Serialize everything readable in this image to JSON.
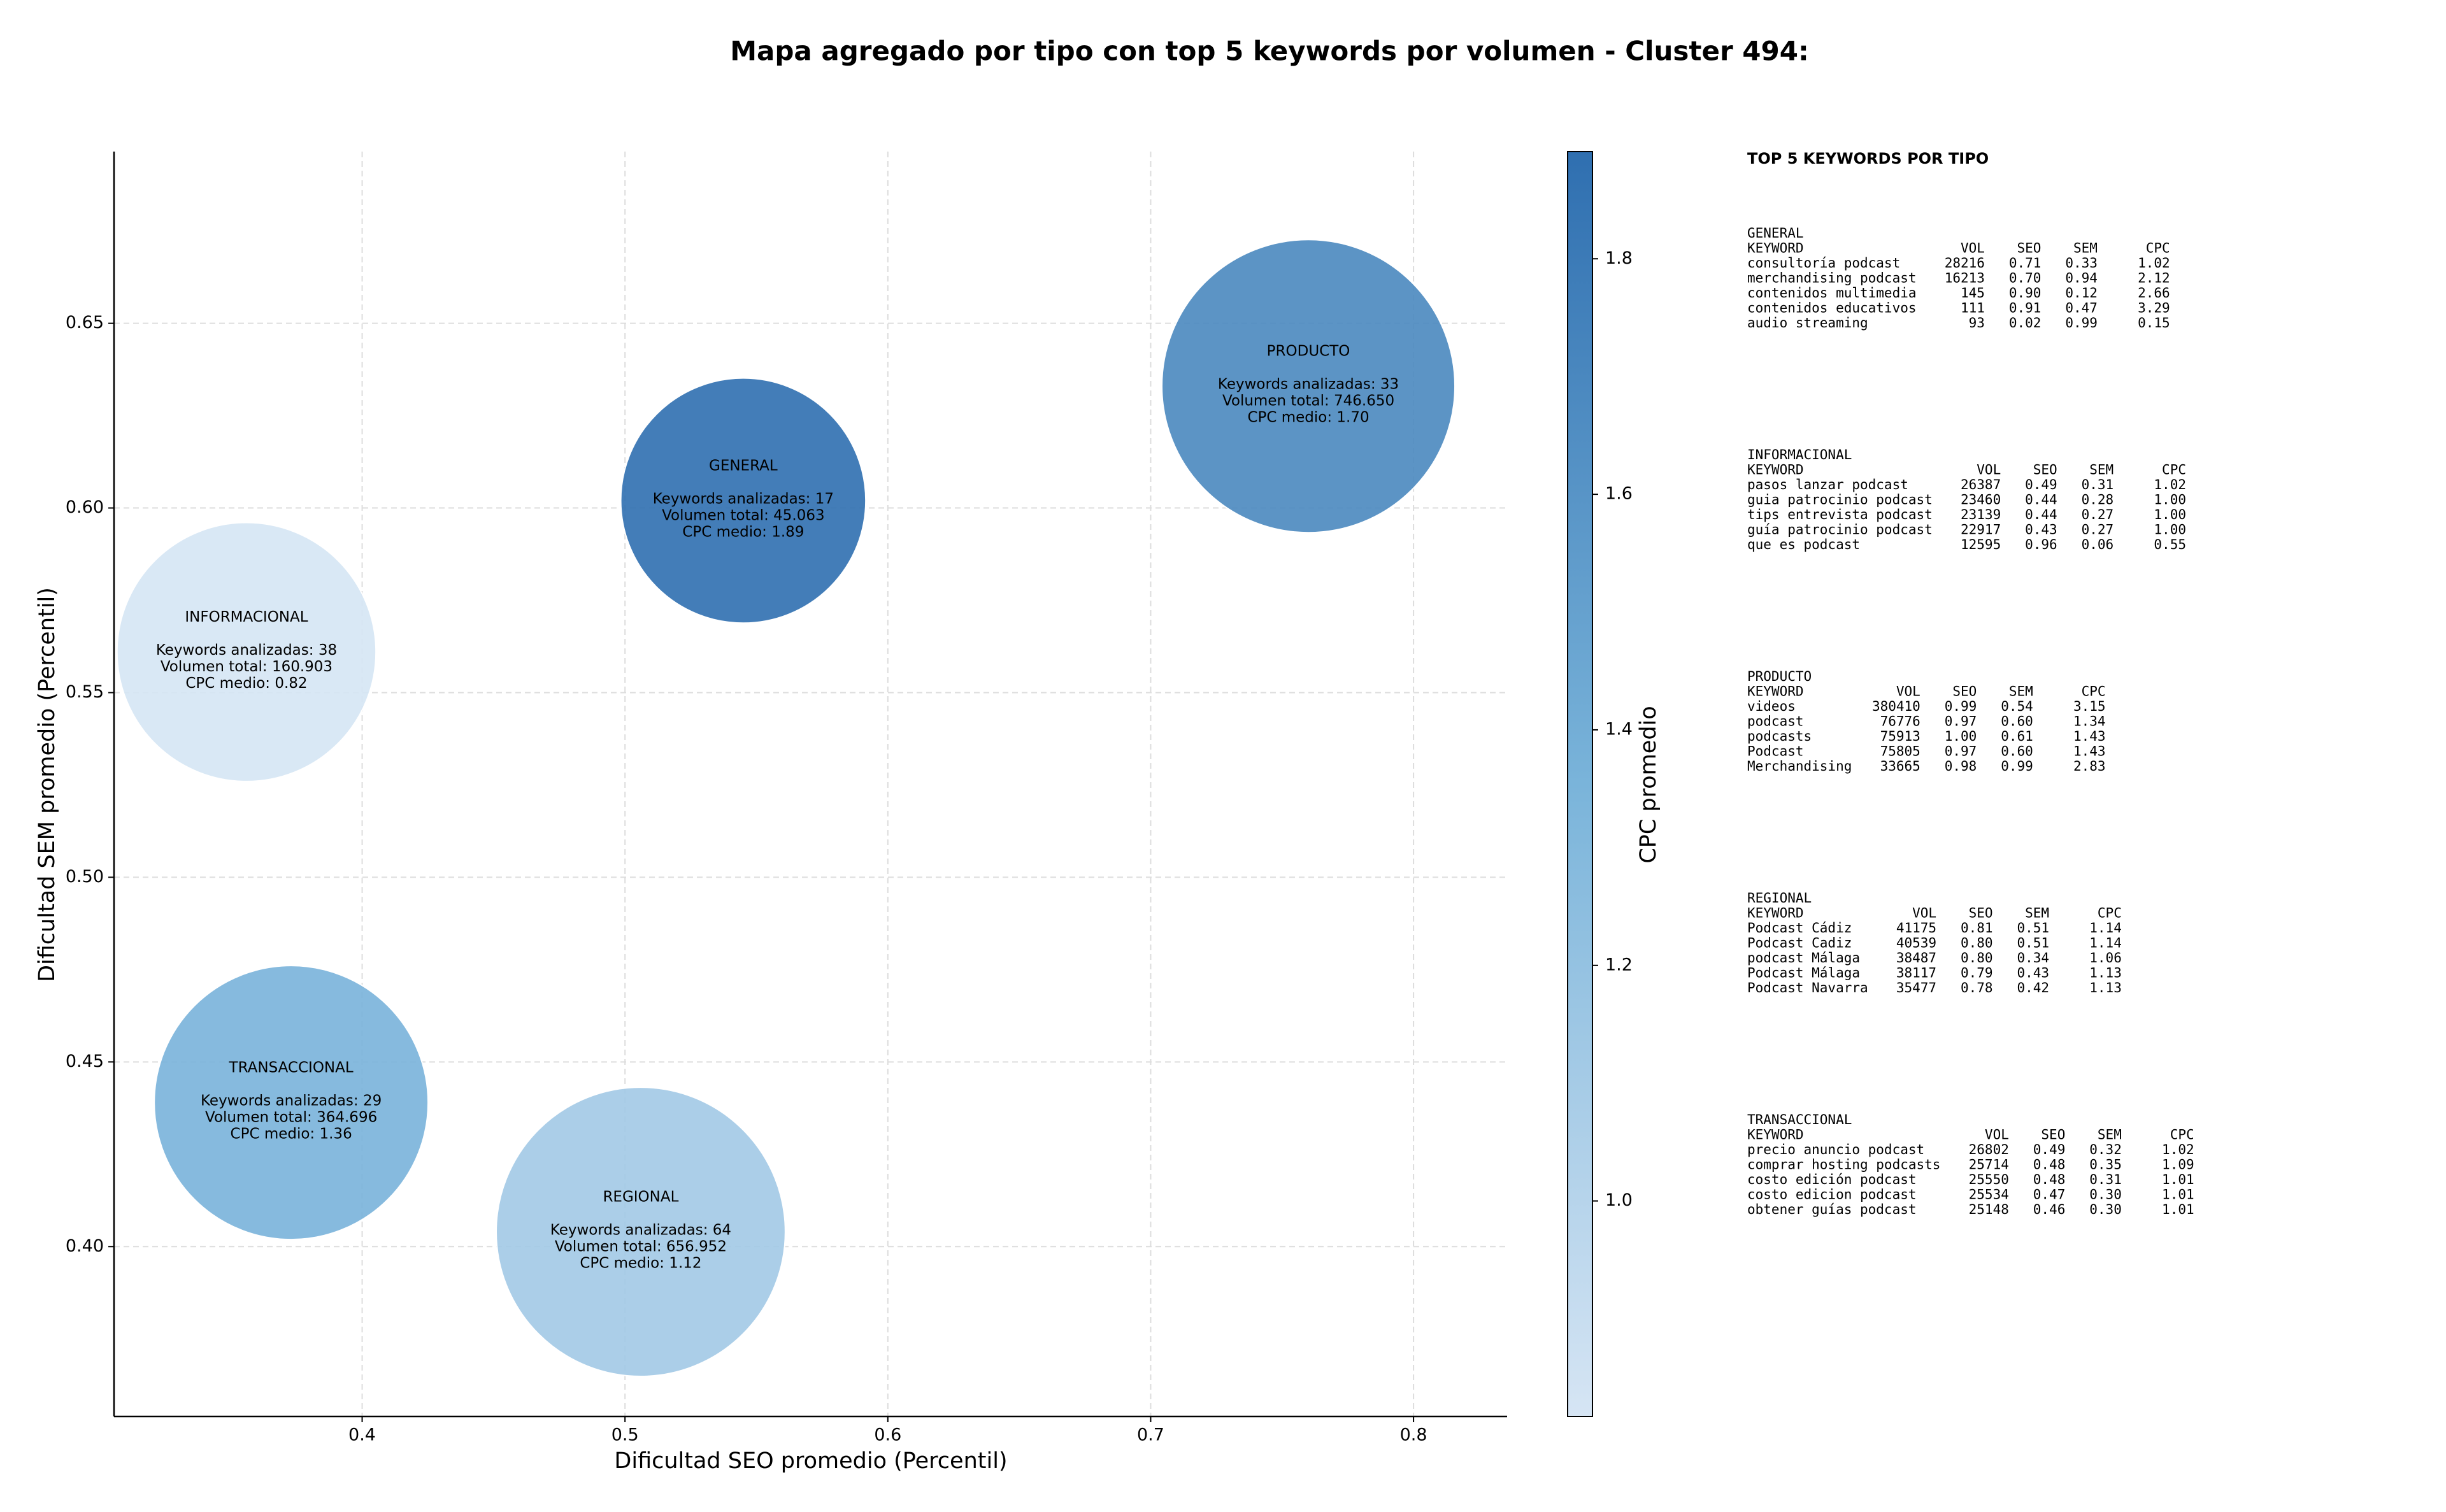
{
  "chart_data": {
    "type": "scatter",
    "title": "Mapa agregado por tipo con top 5 keywords por volumen - Cluster 494:",
    "xlabel": "Dificultad SEO promedio (Percentil)",
    "ylabel": "Dificultad SEM promedio (Percentil)",
    "x": [
      0.545,
      0.356,
      0.76,
      0.506,
      0.373
    ],
    "values": [
      0.602,
      0.561,
      0.633,
      0.404,
      0.439
    ],
    "sizes": [
      45063,
      160903,
      746650,
      656952,
      364696
    ],
    "cpc": [
      1.89,
      0.82,
      1.7,
      1.12,
      1.36
    ],
    "labels": [
      [
        "GENERAL",
        "Keywords analizadas: 17",
        "Volumen total: 45.063",
        "CPC medio: 1.89"
      ],
      [
        "INFORMACIONAL",
        "Keywords analizadas: 38",
        "Volumen total: 160.903",
        "CPC medio: 0.82"
      ],
      [
        "PRODUCTO",
        "Keywords analizadas: 33",
        "Volumen total: 746.650",
        "CPC medio: 1.70"
      ],
      [
        "REGIONAL",
        "Keywords analizadas: 64",
        "Volumen total: 656.952",
        "CPC medio: 1.12"
      ],
      [
        "TRANSACCIONAL",
        "Keywords analizadas: 29",
        "Volumen total: 364.696",
        "CPC medio: 1.36"
      ]
    ],
    "xlim": [
      0.3056,
      0.8356
    ],
    "ylim": [
      0.354,
      0.6965
    ],
    "xticks": [
      0.4,
      0.5,
      0.6,
      0.7,
      0.8
    ],
    "yticks": [
      {
        "value": 0.4,
        "label": "0.40"
      },
      0.45,
      {
        "value": 0.5,
        "label": "0.50"
      },
      0.55,
      {
        "value": 0.6,
        "label": "0.60"
      },
      0.65
    ],
    "grid": true,
    "colormap": [
      "#d6e5f4",
      "#7ab4da",
      "#2f6fb0"
    ],
    "colorbar": {
      "label": "CPC promedio",
      "lim": [
        0.817,
        1.891
      ],
      "ticks": [
        {
          "value": 1.0,
          "label": "1.0"
        },
        {
          "value": 1.2,
          "label": "1.2"
        },
        {
          "value": 1.4,
          "label": "1.4"
        },
        {
          "value": 1.6,
          "label": "1.6"
        },
        {
          "value": 1.8,
          "label": "1.8"
        }
      ]
    }
  },
  "side_panel": {
    "title": "TOP 5 KEYWORDS POR TIPO",
    "columns": [
      "KEYWORD",
      "VOL",
      "SEO",
      "SEM",
      "CPC"
    ],
    "groups": [
      {
        "name": "GENERAL",
        "rows": [
          [
            "consultoría podcast",
            "28216",
            "0.71",
            "0.33",
            "1.02"
          ],
          [
            "merchandising podcast",
            "16213",
            "0.70",
            "0.94",
            "2.12"
          ],
          [
            "contenidos multimedia",
            "145",
            "0.90",
            "0.12",
            "2.66"
          ],
          [
            "contenidos educativos",
            "111",
            "0.91",
            "0.47",
            "3.29"
          ],
          [
            "audio streaming",
            "93",
            "0.02",
            "0.99",
            "0.15"
          ]
        ]
      },
      {
        "name": "INFORMACIONAL",
        "rows": [
          [
            "pasos lanzar podcast",
            "26387",
            "0.49",
            "0.31",
            "1.02"
          ],
          [
            "guia patrocinio podcast",
            "23460",
            "0.44",
            "0.28",
            "1.00"
          ],
          [
            "tips entrevista podcast",
            "23139",
            "0.44",
            "0.27",
            "1.00"
          ],
          [
            "guía patrocinio podcast",
            "22917",
            "0.43",
            "0.27",
            "1.00"
          ],
          [
            "que es podcast",
            "12595",
            "0.96",
            "0.06",
            "0.55"
          ]
        ]
      },
      {
        "name": "PRODUCTO",
        "rows": [
          [
            "videos",
            "380410",
            "0.99",
            "0.54",
            "3.15"
          ],
          [
            "podcast",
            "76776",
            "0.97",
            "0.60",
            "1.34"
          ],
          [
            "podcasts",
            "75913",
            "1.00",
            "0.61",
            "1.43"
          ],
          [
            "Podcast",
            "75805",
            "0.97",
            "0.60",
            "1.43"
          ],
          [
            "Merchandising",
            "33665",
            "0.98",
            "0.99",
            "2.83"
          ]
        ]
      },
      {
        "name": "REGIONAL",
        "rows": [
          [
            "Podcast Cádiz",
            "41175",
            "0.81",
            "0.51",
            "1.14"
          ],
          [
            "Podcast Cadiz",
            "40539",
            "0.80",
            "0.51",
            "1.14"
          ],
          [
            "podcast Málaga",
            "38487",
            "0.80",
            "0.34",
            "1.06"
          ],
          [
            "Podcast Málaga",
            "38117",
            "0.79",
            "0.43",
            "1.13"
          ],
          [
            "Podcast Navarra",
            "35477",
            "0.78",
            "0.42",
            "1.13"
          ]
        ]
      },
      {
        "name": "TRANSACCIONAL",
        "rows": [
          [
            "precio anuncio podcast",
            "26802",
            "0.49",
            "0.32",
            "1.02"
          ],
          [
            "comprar hosting podcasts",
            "25714",
            "0.48",
            "0.35",
            "1.09"
          ],
          [
            "costo edición podcast",
            "25550",
            "0.48",
            "0.31",
            "1.01"
          ],
          [
            "costo edicion podcast",
            "25534",
            "0.47",
            "0.30",
            "1.01"
          ],
          [
            "obtener guías podcast",
            "25148",
            "0.46",
            "0.30",
            "1.01"
          ]
        ]
      }
    ]
  }
}
